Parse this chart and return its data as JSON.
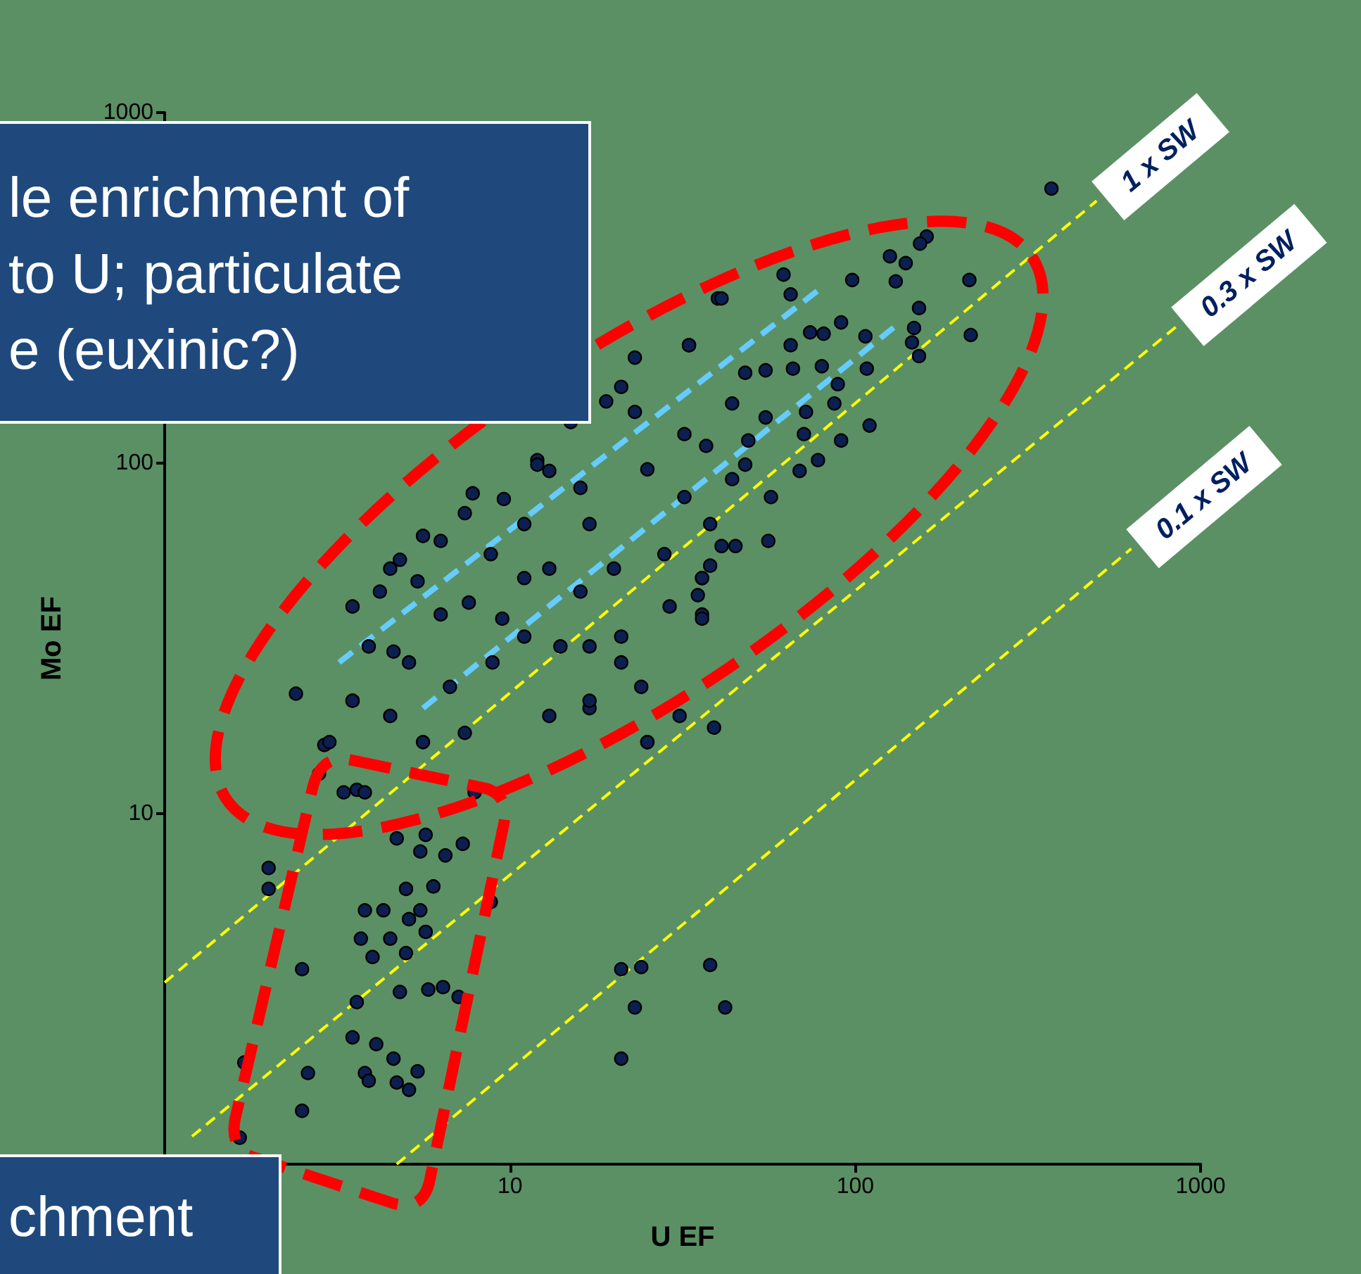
{
  "chart_data": {
    "type": "scatter",
    "xlabel": "U EF",
    "ylabel": "Mo EF",
    "annotations": [
      "le enrichment of\nto U; particulate\ne (euxinic?)",
      "chment"
    ],
    "xlim": [
      1,
      1000
    ],
    "ylim": [
      1,
      1000
    ],
    "xticks": [
      10,
      100,
      1000
    ],
    "yticks": [
      10,
      100,
      1000
    ],
    "marker": "circle",
    "log": "xy",
    "series": [
      {
        "type": "line",
        "name": "1 x SW",
        "color": "#ffff00",
        "line_style": "dashed",
        "marker": "none",
        "x": [
          1,
          500
        ],
        "values": [
          3.3,
          560
        ]
      },
      {
        "type": "line",
        "name": "0.3 x SW",
        "color": "#ffff00",
        "line_style": "dashed",
        "marker": "none",
        "x": [
          1.2,
          850
        ],
        "values": [
          1.2,
          245
        ]
      },
      {
        "type": "line",
        "name": "0.1 x SW",
        "color": "#ffff00",
        "line_style": "dashed",
        "marker": "none",
        "x": [
          4.7,
          630
        ],
        "values": [
          1,
          57
        ]
      },
      {
        "type": "line",
        "color": "#66ccff",
        "line_style": "dashed",
        "marker": "none",
        "x": [
          3.2,
          81
        ],
        "values": [
          27,
          320
        ]
      },
      {
        "type": "line",
        "color": "#66ccff",
        "line_style": "dashed",
        "marker": "none",
        "x": [
          5.6,
          130
        ],
        "values": [
          20,
          245
        ]
      },
      {
        "color": "#0b2050",
        "x": [
          2.4,
          2.0,
          2.0,
          2.5,
          1.7,
          2.6,
          2.5,
          1.65,
          5.0,
          6.0,
          3.8,
          4.3,
          5.5,
          5.1,
          3.7,
          4.5,
          4.0,
          5.0,
          5.7,
          4.8,
          5.8,
          6.4,
          7.1,
          3.6,
          3.5,
          4.1,
          4.6,
          5.4,
          3.8,
          3.9,
          4.7,
          5.1,
          8.8,
          5.5,
          6.5,
          7.3,
          4.7,
          5.7,
          3.6,
          3.8,
          7.9,
          21,
          24,
          23,
          21,
          38,
          42,
          31,
          39,
          25,
          17,
          13,
          2.9,
          3.5,
          4.5,
          40,
          23,
          21,
          33,
          12,
          13,
          7.8,
          16,
          32,
          37,
          23,
          25,
          9.6,
          7.4,
          17,
          11,
          6.3,
          4.8,
          4.5,
          8.8,
          11,
          13,
          5.4,
          3.9,
          4.6,
          20,
          28,
          36,
          29,
          36,
          21,
          16,
          17,
          6.3,
          7.6,
          9.5,
          11,
          32,
          38,
          370,
          161,
          154,
          126,
          140,
          62,
          98,
          131,
          214,
          41,
          65,
          153,
          148,
          146,
          216,
          107,
          91,
          74,
          81,
          65,
          153,
          66,
          55,
          80,
          108,
          48,
          33,
          89,
          87,
          110,
          72,
          44,
          55,
          91,
          71,
          78,
          69,
          49,
          48,
          44,
          57,
          56,
          45,
          41,
          38,
          36,
          35,
          36,
          15,
          19,
          12,
          5.6,
          4.2,
          3.5,
          5.1,
          6.7,
          8.9,
          14,
          3.5,
          5.6,
          7.4,
          21,
          24,
          25,
          17,
          3.0,
          2.8,
          3.3
        ],
        "values": [
          22,
          7.0,
          6.1,
          3.6,
          1.95,
          1.82,
          1.42,
          1.19,
          6.1,
          6.2,
          5.3,
          5.3,
          5.3,
          5.0,
          4.4,
          4.4,
          3.9,
          4.0,
          4.6,
          3.1,
          3.15,
          3.2,
          3.0,
          2.9,
          2.3,
          2.2,
          2.0,
          1.84,
          1.82,
          1.73,
          1.71,
          1.63,
          5.6,
          7.8,
          7.6,
          8.2,
          8.5,
          8.7,
          11.7,
          11.5,
          11.5,
          3.6,
          3.65,
          2.8,
          2.0,
          3.7,
          2.8,
          19,
          17.6,
          16,
          20,
          19,
          15.7,
          21,
          19,
          295,
          200,
          165,
          217,
          102,
          95,
          82,
          85,
          121,
          112,
          140,
          96,
          79,
          72,
          67,
          67,
          60,
          53,
          50,
          55,
          47,
          50,
          46,
          30,
          29,
          50,
          55,
          47,
          39,
          37,
          32,
          43,
          30,
          37,
          40,
          36,
          32,
          80,
          67,
          607,
          443,
          423,
          389,
          372,
          345,
          333,
          330,
          333,
          295,
          303,
          277,
          243,
          221,
          232,
          230,
          252,
          236,
          234,
          217,
          202,
          186,
          184,
          189,
          186,
          181,
          217,
          168,
          148,
          128,
          140,
          148,
          135,
          116,
          121,
          102,
          95,
          116,
          99,
          90,
          80,
          60,
          58,
          58,
          51,
          47,
          42,
          36,
          131,
          150,
          99,
          62,
          43,
          39,
          27,
          23,
          27,
          30,
          21,
          16,
          17,
          27,
          23,
          16,
          21,
          16,
          13,
          11.5
        ]
      }
    ]
  }
}
